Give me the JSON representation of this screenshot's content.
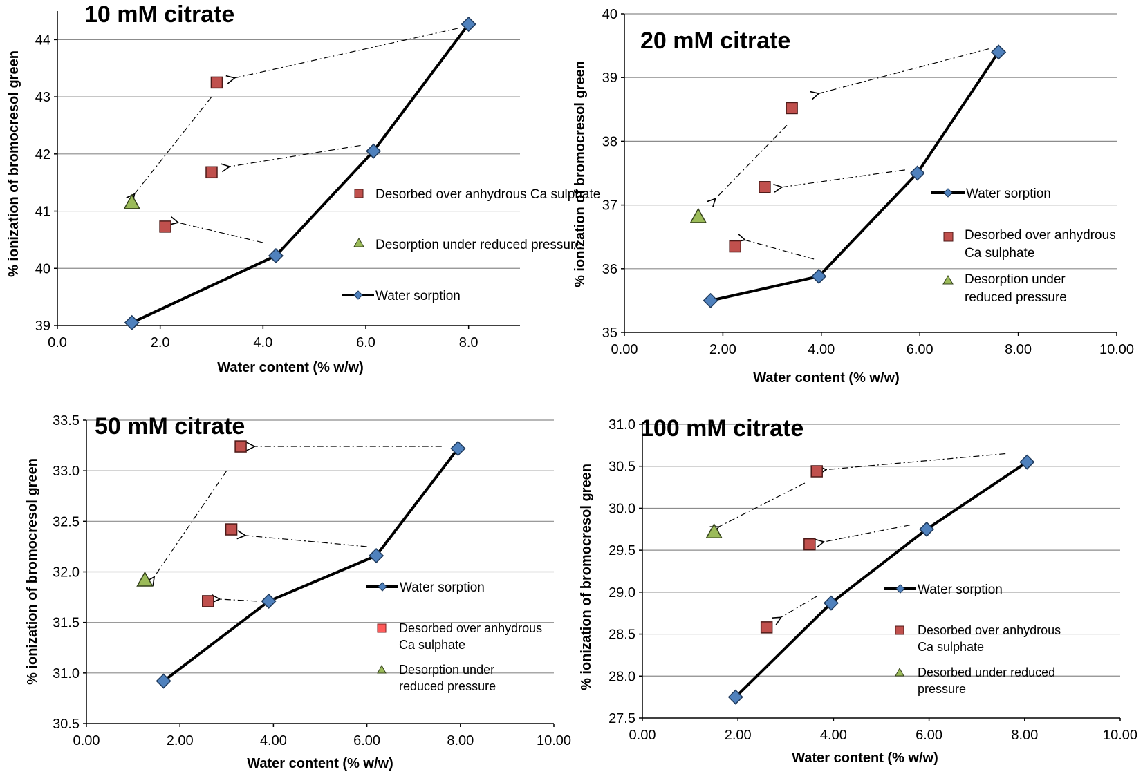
{
  "chart_data": [
    {
      "type": "scatter",
      "title": "10 mM citrate",
      "xlabel": "Water content (% w/w)",
      "ylabel": "% ionization of bromocresol green",
      "xlim": [
        0,
        9
      ],
      "ylim": [
        39,
        44.5
      ],
      "x_ticks": [
        "0.0",
        "2.0",
        "4.0",
        "6.0",
        "8.0"
      ],
      "x_tick_values": [
        0,
        2,
        4,
        6,
        8
      ],
      "y_ticks": [
        "39",
        "40",
        "41",
        "42",
        "43",
        "44"
      ],
      "y_tick_values": [
        39,
        40,
        41,
        42,
        43,
        44
      ],
      "grid": true,
      "legend": [
        "Desorbed over anhydrous Ca sulphate",
        "Desorption under reduced pressure",
        "Water sorption"
      ],
      "series": [
        {
          "name": "Water sorption",
          "marker": "diamond",
          "color": "#4f81bd",
          "line": true,
          "x": [
            1.45,
            4.25,
            6.15,
            8.0
          ],
          "y": [
            39.05,
            40.22,
            42.05,
            44.27
          ]
        },
        {
          "name": "Desorbed over anhydrous Ca sulphate",
          "marker": "square",
          "color": "#c0504d",
          "line": false,
          "x": [
            3.1,
            3.0,
            2.1
          ],
          "y": [
            43.25,
            41.68,
            40.73
          ]
        },
        {
          "name": "Desorption under reduced pressure",
          "marker": "triangle",
          "color": "#9bbb59",
          "line": false,
          "x": [
            1.45
          ],
          "y": [
            41.15
          ]
        }
      ],
      "annotations": [
        {
          "from": [
            7.8,
            44.2
          ],
          "to": [
            3.45,
            43.33
          ]
        },
        {
          "from": [
            3.0,
            43.0
          ],
          "to": [
            1.5,
            41.3
          ]
        },
        {
          "from": [
            5.9,
            42.15
          ],
          "to": [
            3.35,
            41.78
          ]
        },
        {
          "from": [
            4.0,
            40.45
          ],
          "to": [
            2.35,
            40.8
          ]
        }
      ]
    },
    {
      "type": "scatter",
      "title": "20 mM citrate",
      "xlabel": "Water content (% w/w)",
      "ylabel": "% ionization of bromocresol green",
      "xlim": [
        0,
        10
      ],
      "ylim": [
        35,
        40
      ],
      "x_ticks": [
        "0.00",
        "2.00",
        "4.00",
        "6.00",
        "8.00",
        "10.00"
      ],
      "x_tick_values": [
        0,
        2,
        4,
        6,
        8,
        10
      ],
      "y_ticks": [
        "35",
        "36",
        "37",
        "38",
        "39",
        "40"
      ],
      "y_tick_values": [
        35,
        36,
        37,
        38,
        39,
        40
      ],
      "grid": true,
      "legend": [
        "Water sorption",
        "Desorbed over anhydrous Ca sulphate",
        "Desorption under reduced pressure"
      ],
      "series": [
        {
          "name": "Water sorption",
          "marker": "diamond",
          "color": "#4f81bd",
          "line": true,
          "x": [
            1.75,
            3.95,
            5.95,
            7.6
          ],
          "y": [
            35.5,
            35.88,
            37.5,
            39.4
          ]
        },
        {
          "name": "Desorbed over anhydrous Ca sulphate",
          "marker": "square",
          "color": "#c0504d",
          "line": false,
          "x": [
            3.4,
            2.85,
            2.25
          ],
          "y": [
            38.52,
            37.28,
            36.35
          ]
        },
        {
          "name": "Desorption under reduced pressure",
          "marker": "triangle",
          "color": "#9bbb59",
          "line": false,
          "x": [
            1.5
          ],
          "y": [
            36.82
          ]
        }
      ],
      "annotations": [
        {
          "from": [
            7.4,
            39.45
          ],
          "to": [
            3.95,
            38.75
          ]
        },
        {
          "from": [
            3.3,
            38.25
          ],
          "to": [
            1.85,
            37.1
          ]
        },
        {
          "from": [
            5.7,
            37.55
          ],
          "to": [
            3.2,
            37.28
          ]
        },
        {
          "from": [
            3.85,
            36.15
          ],
          "to": [
            2.45,
            36.45
          ]
        }
      ]
    },
    {
      "type": "scatter",
      "title": "50 mM citrate",
      "xlabel": "Water content (% w/w)",
      "ylabel": "% ionization of bromocresol green",
      "xlim": [
        0,
        10
      ],
      "ylim": [
        30.5,
        33.5
      ],
      "x_ticks": [
        "0.00",
        "2.00",
        "4.00",
        "6.00",
        "8.00",
        "10.00"
      ],
      "x_tick_values": [
        0,
        2,
        4,
        6,
        8,
        10
      ],
      "y_ticks": [
        "30.5",
        "31.0",
        "31.5",
        "32.0",
        "32.5",
        "33.0",
        "33.5"
      ],
      "y_tick_values": [
        30.5,
        31.0,
        31.5,
        32.0,
        32.5,
        33.0,
        33.5
      ],
      "grid": true,
      "legend": [
        "Water sorption",
        "Desorbed over anhydrous Ca sulphate",
        "Desorption under reduced pressure"
      ],
      "series": [
        {
          "name": "Water sorption",
          "marker": "diamond",
          "color": "#4f81bd",
          "line": true,
          "x": [
            1.65,
            3.9,
            6.2,
            7.95
          ],
          "y": [
            30.92,
            31.71,
            32.16,
            33.22
          ]
        },
        {
          "name": "Desorbed over anhydrous Ca sulphate",
          "marker": "square",
          "color": "#c0504d",
          "line": false,
          "x": [
            3.3,
            3.1,
            2.6
          ],
          "y": [
            33.24,
            32.42,
            31.71
          ]
        },
        {
          "name": "Desorption under reduced pressure",
          "marker": "triangle",
          "color": "#9bbb59",
          "line": false,
          "x": [
            1.25
          ],
          "y": [
            31.92
          ]
        }
      ],
      "annotations": [
        {
          "from": [
            7.6,
            33.24
          ],
          "to": [
            3.6,
            33.24
          ]
        },
        {
          "from": [
            3.0,
            33.0
          ],
          "to": [
            1.45,
            31.95
          ]
        },
        {
          "from": [
            6.0,
            32.25
          ],
          "to": [
            3.4,
            32.36
          ]
        },
        {
          "from": [
            3.65,
            31.71
          ],
          "to": [
            2.85,
            31.73
          ]
        }
      ]
    },
    {
      "type": "scatter",
      "title": "100 mM citrate",
      "xlabel": "Water content (% w/w)",
      "ylabel": "% ionization of bromocresol green",
      "xlim": [
        0,
        10
      ],
      "ylim": [
        27.5,
        31.0
      ],
      "x_ticks": [
        "0.00",
        "2.00",
        "4.00",
        "6.00",
        "8.00",
        "10.00"
      ],
      "x_tick_values": [
        0,
        2,
        4,
        6,
        8,
        10
      ],
      "y_ticks": [
        "27.5",
        "28.0",
        "28.5",
        "29.0",
        "29.5",
        "30.0",
        "30.5",
        "31.0"
      ],
      "y_tick_values": [
        27.5,
        28.0,
        28.5,
        29.0,
        29.5,
        30.0,
        30.5,
        31.0
      ],
      "grid": true,
      "legend": [
        "Water sorption",
        "Desorbed over anhydrous Ca sulphate",
        "Desorbed under reduced pressure"
      ],
      "series": [
        {
          "name": "Water sorption",
          "marker": "diamond",
          "color": "#4f81bd",
          "line": true,
          "x": [
            1.95,
            3.95,
            5.95,
            8.05
          ],
          "y": [
            27.75,
            28.87,
            29.75,
            30.55
          ]
        },
        {
          "name": "Desorbed over anhydrous Ca sulphate",
          "marker": "square",
          "color": "#c0504d",
          "line": false,
          "x": [
            3.65,
            3.5,
            2.6
          ],
          "y": [
            30.44,
            29.57,
            28.58
          ]
        },
        {
          "name": "Desorbed under reduced pressure",
          "marker": "triangle",
          "color": "#9bbb59",
          "line": false,
          "x": [
            1.5
          ],
          "y": [
            29.72
          ]
        }
      ],
      "annotations": [
        {
          "from": [
            7.6,
            30.65
          ],
          "to": [
            3.85,
            30.46
          ]
        },
        {
          "from": [
            3.4,
            30.3
          ],
          "to": [
            1.6,
            29.78
          ]
        },
        {
          "from": [
            5.6,
            29.8
          ],
          "to": [
            3.8,
            29.6
          ]
        },
        {
          "from": [
            3.65,
            28.95
          ],
          "to": [
            2.9,
            28.7
          ]
        }
      ]
    }
  ]
}
